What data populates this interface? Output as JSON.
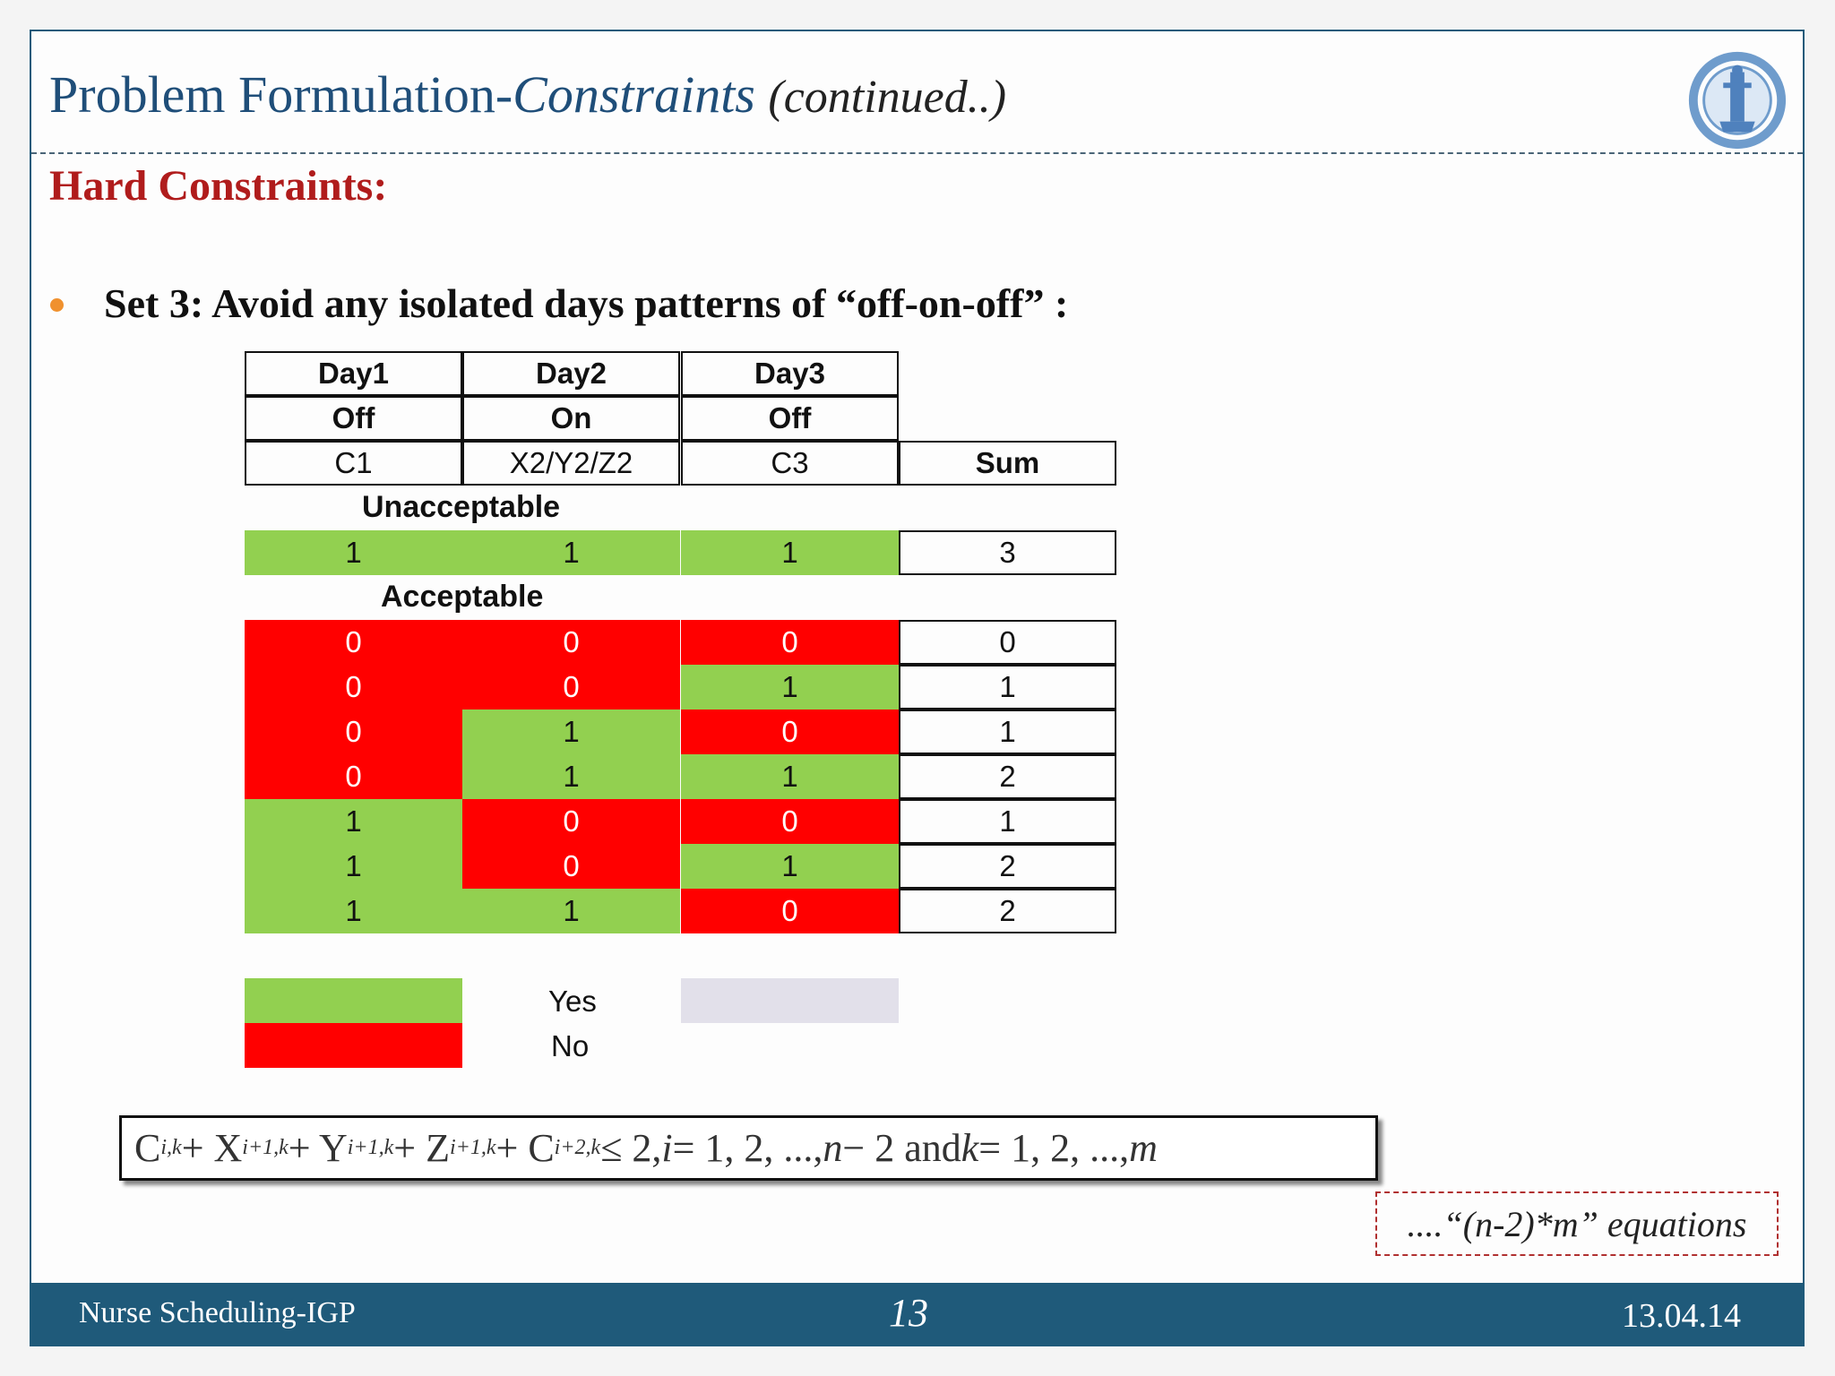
{
  "title": {
    "main": "Problem Formulation-",
    "italic": "Constraints",
    "suffix": "(continued..)"
  },
  "section": {
    "heading": "Hard Constraints:"
  },
  "bullet": {
    "text": "Set 3: Avoid any isolated days patterns of “off-on-off” :"
  },
  "table": {
    "days": [
      "Day1",
      "Day2",
      "Day3"
    ],
    "states": [
      "Off",
      "On",
      "Off"
    ],
    "vars": [
      "C1",
      "X2/Y2/Z2",
      "C3"
    ],
    "sum_header": "Sum",
    "unacceptable_label": "Unacceptable",
    "acceptable_label": "Acceptable",
    "unacceptable_rows": [
      {
        "values": [
          "1",
          "1",
          "1"
        ],
        "sum": "3"
      }
    ],
    "acceptable_rows": [
      {
        "values": [
          "0",
          "0",
          "0"
        ],
        "sum": "0"
      },
      {
        "values": [
          "0",
          "0",
          "1"
        ],
        "sum": "1"
      },
      {
        "values": [
          "0",
          "1",
          "0"
        ],
        "sum": "1"
      },
      {
        "values": [
          "0",
          "1",
          "1"
        ],
        "sum": "2"
      },
      {
        "values": [
          "1",
          "0",
          "0"
        ],
        "sum": "1"
      },
      {
        "values": [
          "1",
          "0",
          "1"
        ],
        "sum": "2"
      },
      {
        "values": [
          "1",
          "1",
          "0"
        ],
        "sum": "2"
      }
    ]
  },
  "legend": {
    "yes": "Yes",
    "no": "No"
  },
  "colors": {
    "yes": "#92d050",
    "no": "#ff0000",
    "title": "#1f4e79",
    "heading": "#b01c1c",
    "footer": "#1f5a7a"
  },
  "formula": {
    "text_parts": [
      "C",
      "i,k",
      " + X",
      "i+1,k",
      " + Y",
      "i+1,k",
      " + Z",
      "i+1,k",
      " + C",
      "i+2,k",
      " ≤ 2,  ",
      "i",
      " = 1, 2, ..., ",
      "n",
      " − 2 and ",
      "k",
      " = 1, 2, ..., ",
      "m"
    ]
  },
  "equations_note": "....“(n-2)*m” equations",
  "footer": {
    "left": "Nurse Scheduling-IGP",
    "page": "13",
    "date": "13.04.14"
  }
}
